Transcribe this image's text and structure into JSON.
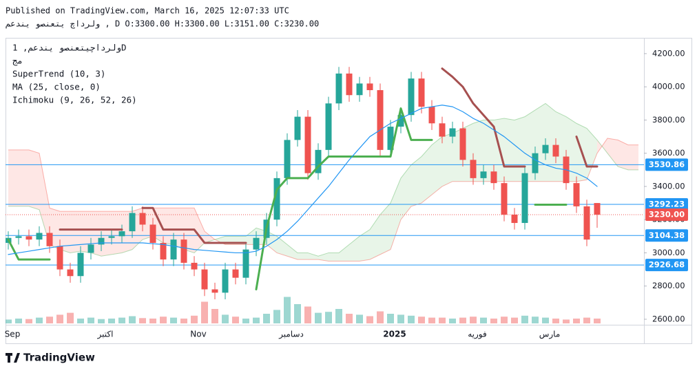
{
  "header": {
    "published": "Published on TradingView.com, March 16, 2025 12:07:33 UTC",
    "ohlc": "ولرداچ یتعنصو یندعم , D O:3300.00 H:3300.00 L:3151.00 C:3230.00"
  },
  "footer": {
    "logo": "TradingView"
  },
  "chart_data": {
    "type": "candlestick",
    "legend": [
      "ولرداچیتعنصو یندعم, 1D",
      "مج",
      "SuperTrend (10, 3)",
      "MA (25, close, 0)",
      "Ichimoku (9, 26, 52, 26)"
    ],
    "categories": [
      "Sep",
      null,
      null,
      null,
      null,
      null,
      null,
      null,
      null,
      "اکتبر",
      null,
      null,
      null,
      null,
      null,
      null,
      null,
      null,
      "Nov",
      null,
      null,
      null,
      null,
      null,
      null,
      null,
      null,
      "دسامبر",
      null,
      null,
      null,
      null,
      null,
      null,
      null,
      null,
      null,
      "2025",
      null,
      null,
      null,
      null,
      null,
      null,
      null,
      "فوریه",
      null,
      null,
      null,
      null,
      null,
      null,
      "مارس",
      null,
      null,
      null,
      null,
      null,
      null,
      null,
      null,
      null
    ],
    "open": [
      3060,
      3090,
      3100,
      3080,
      3120,
      3040,
      2900,
      2860,
      3000,
      3050,
      3090,
      3100,
      3130,
      3240,
      3170,
      3060,
      2960,
      3080,
      2940,
      2900,
      2780,
      2760,
      2900,
      2850,
      3020,
      3090,
      3200,
      3450,
      3680,
      3820,
      3480,
      3620,
      3900,
      4080,
      3950,
      4020,
      3980,
      3620,
      3760,
      3830,
      4050,
      3880,
      3780,
      3700,
      3750,
      3560,
      3450,
      3490,
      3420,
      3230,
      3180,
      3480,
      3600,
      3650,
      3580,
      3420,
      3280,
      3300,
      null,
      null,
      null,
      null
    ],
    "high": [
      3130,
      3140,
      3140,
      3160,
      3160,
      3080,
      2940,
      3040,
      3090,
      3130,
      3140,
      3170,
      3280,
      3280,
      3210,
      3100,
      3120,
      3120,
      2980,
      2940,
      2820,
      2940,
      2940,
      3060,
      3130,
      3240,
      3490,
      3720,
      3860,
      3860,
      3660,
      3940,
      4120,
      4120,
      4060,
      4060,
      4020,
      3800,
      3870,
      4090,
      4090,
      3920,
      3820,
      3790,
      3790,
      3600,
      3530,
      3530,
      3460,
      3270,
      3520,
      3640,
      3690,
      3690,
      3620,
      3460,
      3320,
      3300,
      null,
      null,
      null,
      null
    ],
    "low": [
      3020,
      3050,
      3040,
      3040,
      3000,
      2860,
      2820,
      2820,
      2960,
      3010,
      3050,
      3060,
      3090,
      3130,
      3020,
      2920,
      2920,
      2900,
      2860,
      2740,
      2720,
      2720,
      2810,
      2810,
      2980,
      3050,
      3160,
      3410,
      3640,
      3440,
      3440,
      3580,
      3860,
      3910,
      3910,
      3940,
      3580,
      3580,
      3720,
      3790,
      3840,
      3740,
      3660,
      3660,
      3520,
      3410,
      3410,
      3380,
      3190,
      3140,
      3140,
      3440,
      3560,
      3540,
      3380,
      3240,
      3040,
      3151,
      null,
      null,
      null,
      null
    ],
    "close": [
      3090,
      3100,
      3080,
      3120,
      3040,
      2900,
      2860,
      3000,
      3050,
      3090,
      3100,
      3130,
      3240,
      3170,
      3060,
      2960,
      3080,
      2940,
      2900,
      2780,
      2760,
      2900,
      2850,
      3020,
      3090,
      3200,
      3450,
      3680,
      3820,
      3480,
      3620,
      3900,
      4080,
      3950,
      4020,
      3980,
      3620,
      3760,
      3830,
      4050,
      3880,
      3780,
      3700,
      3750,
      3560,
      3450,
      3490,
      3420,
      3230,
      3180,
      3480,
      3600,
      3650,
      3580,
      3420,
      3280,
      3080,
      3230,
      null,
      null,
      null,
      null
    ],
    "up_color": "#26a69a",
    "down_color": "#ef5350",
    "volume": [
      8,
      10,
      9,
      12,
      14,
      18,
      22,
      10,
      12,
      9,
      10,
      12,
      15,
      11,
      10,
      14,
      12,
      10,
      16,
      45,
      30,
      18,
      14,
      10,
      12,
      20,
      28,
      55,
      40,
      35,
      22,
      24,
      30,
      20,
      18,
      15,
      25,
      20,
      18,
      16,
      14,
      12,
      12,
      10,
      12,
      14,
      12,
      10,
      14,
      12,
      16,
      14,
      12,
      10,
      8,
      10,
      12,
      10,
      null,
      null,
      null,
      null
    ],
    "volume_lim": [
      0,
      100
    ],
    "series": [
      {
        "name": "SuperTrend (10, 3)",
        "color": "#4caf50",
        "values": [
          3080,
          2960,
          2960,
          2960,
          2960,
          null,
          null,
          null,
          null,
          null,
          null,
          null,
          3150,
          null,
          null,
          null,
          null,
          null,
          null,
          null,
          null,
          null,
          null,
          null,
          2780,
          3150,
          3380,
          3450,
          3450,
          3450,
          3520,
          3580,
          3580,
          3580,
          3580,
          3580,
          3580,
          3580,
          3870,
          3680,
          3680,
          3680,
          null,
          null,
          null,
          null,
          null,
          null,
          null,
          null,
          null,
          3290,
          3290,
          3290,
          3290,
          null,
          null,
          null,
          null,
          null,
          null,
          null
        ]
      },
      {
        "name": "SuperTrend (10, 3)",
        "color": "#a65050",
        "values": [
          null,
          null,
          null,
          null,
          null,
          3140,
          3140,
          3140,
          3140,
          3140,
          3140,
          3140,
          null,
          3270,
          3270,
          3140,
          3140,
          3140,
          3140,
          3060,
          3060,
          3060,
          3060,
          3060,
          null,
          null,
          null,
          null,
          null,
          null,
          null,
          null,
          null,
          null,
          null,
          null,
          null,
          null,
          null,
          null,
          null,
          null,
          4110,
          4060,
          4000,
          3900,
          3830,
          3760,
          3520,
          3520,
          3520,
          null,
          null,
          null,
          null,
          3700,
          3520,
          3520,
          null,
          null,
          null,
          null
        ]
      },
      {
        "name": "MA (25, close, 0)",
        "color": "#2196f3",
        "values": [
          2990,
          3000,
          3010,
          3020,
          3030,
          3040,
          3045,
          3050,
          3055,
          3060,
          3060,
          3060,
          3060,
          3060,
          3055,
          3050,
          3040,
          3030,
          3020,
          3015,
          3010,
          3005,
          3000,
          3000,
          3010,
          3040,
          3080,
          3130,
          3190,
          3260,
          3330,
          3400,
          3480,
          3560,
          3630,
          3700,
          3740,
          3780,
          3810,
          3840,
          3870,
          3880,
          3890,
          3880,
          3850,
          3810,
          3780,
          3740,
          3700,
          3650,
          3600,
          3560,
          3530,
          3510,
          3500,
          3480,
          3450,
          3400,
          null,
          null,
          null,
          null
        ]
      }
    ],
    "ichimoku": {
      "span_a": [
        3280,
        3280,
        3280,
        3260,
        3050,
        3020,
        3000,
        3010,
        3000,
        2980,
        2990,
        3000,
        3020,
        3080,
        3100,
        3060,
        3050,
        3020,
        3000,
        3060,
        3080,
        3100,
        3100,
        3100,
        3150,
        3130,
        3100,
        3050,
        3000,
        3000,
        2980,
        3000,
        3000,
        3050,
        3100,
        3140,
        3230,
        3300,
        3450,
        3530,
        3580,
        3650,
        3700,
        3720,
        3750,
        3780,
        3800,
        3800,
        3810,
        3800,
        3820,
        3860,
        3900,
        3850,
        3820,
        3780,
        3750,
        3680,
        3600,
        3520,
        3500,
        3500
      ],
      "span_b": [
        3620,
        3620,
        3620,
        3600,
        3270,
        3250,
        3250,
        3250,
        3250,
        3250,
        3250,
        3250,
        3250,
        3270,
        3270,
        3270,
        3270,
        3270,
        3270,
        3130,
        3080,
        3050,
        3050,
        3050,
        3050,
        3050,
        3000,
        2980,
        2960,
        2960,
        2960,
        2950,
        2950,
        2950,
        2950,
        2960,
        2990,
        3020,
        3200,
        3280,
        3300,
        3350,
        3400,
        3430,
        3430,
        3430,
        3430,
        3430,
        3430,
        3430,
        3430,
        3430,
        3430,
        3430,
        3430,
        3430,
        3440,
        3600,
        3690,
        3680,
        3650,
        3650
      ],
      "bull_color": "#4caf50",
      "bear_color": "#f44336"
    },
    "price_lines": [
      {
        "value": 3530.86,
        "color": "#2196f3"
      },
      {
        "value": 3292.23,
        "color": "#2196f3"
      },
      {
        "value": 3230,
        "label": "3230.00",
        "color": "#ef5350",
        "dotted": true
      },
      {
        "value": 3104.38,
        "color": "#2196f3"
      },
      {
        "value": 2926.68,
        "color": "#2196f3"
      }
    ],
    "ylim": [
      2575,
      4266
    ],
    "yticks": [
      {
        "value": 2600,
        "label": "2600.00"
      },
      {
        "value": 2800,
        "label": "2800.00"
      },
      {
        "value": 3000,
        "label": "3000.00"
      },
      {
        "value": 3200,
        "label": "3200.00"
      },
      {
        "value": 3400,
        "label": "3400.00"
      },
      {
        "value": 3600,
        "label": "3600.00"
      },
      {
        "value": 3800,
        "label": "3800.00"
      },
      {
        "value": 4000,
        "label": "4000.00"
      },
      {
        "value": 4200,
        "label": "4200.00"
      }
    ]
  }
}
